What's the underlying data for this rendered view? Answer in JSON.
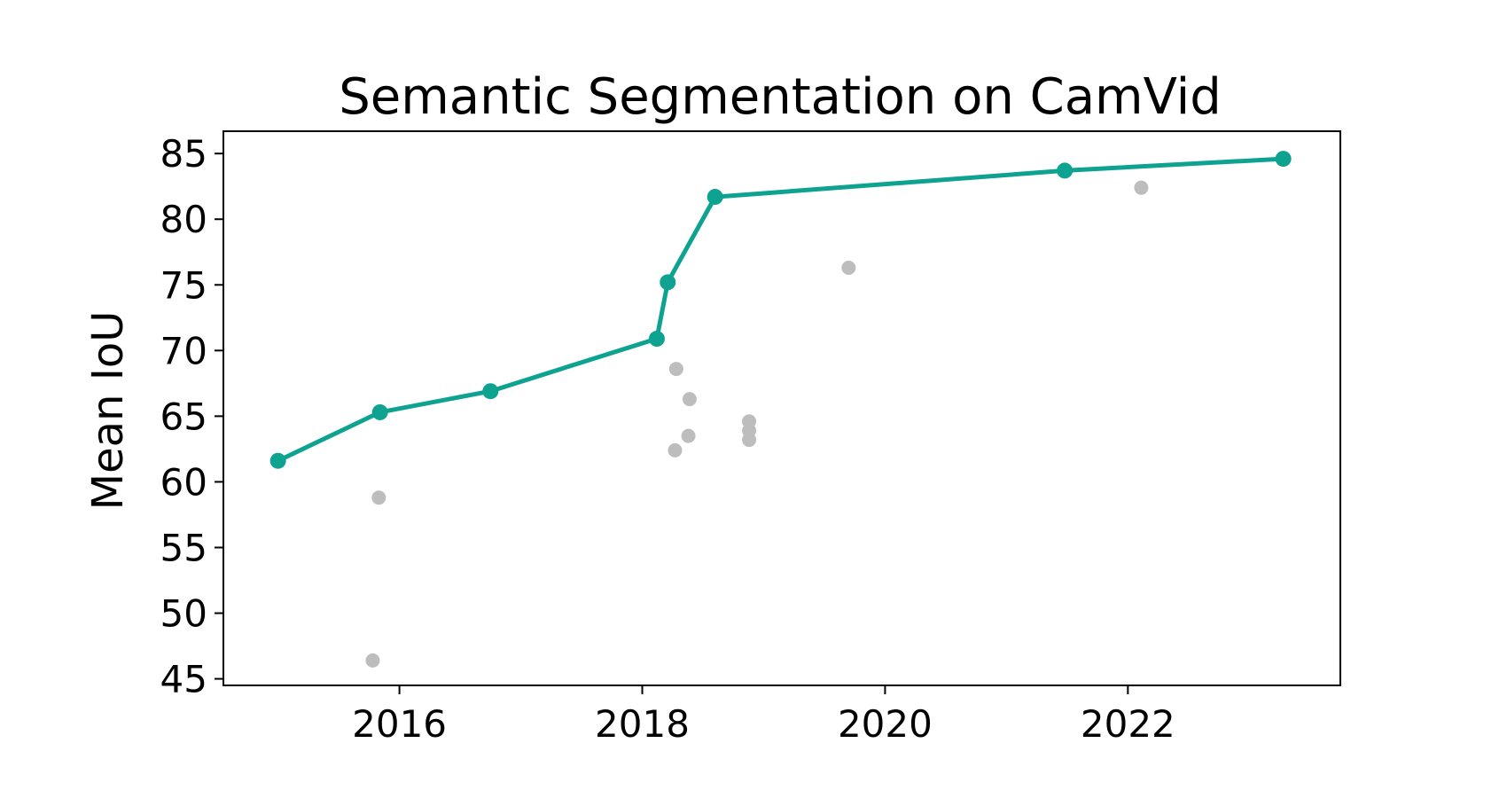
{
  "chart_data": {
    "type": "scatter",
    "title": "Semantic Segmentation on CamVid",
    "xlabel": "",
    "ylabel": "Mean IoU",
    "xlim": [
      2014.55,
      2023.75
    ],
    "ylim": [
      44.5,
      86.7
    ],
    "x_ticks": [
      2016,
      2018,
      2020,
      2022
    ],
    "y_ticks": [
      45,
      50,
      55,
      60,
      65,
      70,
      75,
      80,
      85
    ],
    "grid": false,
    "legend": "none",
    "colors": {
      "sota_line": "#0ea390",
      "other_points": "#bdbdbd",
      "axes": "#000000"
    },
    "series": [
      {
        "kind": "line",
        "points": [
          {
            "x": 2015.0,
            "y": 61.6
          },
          {
            "x": 2015.84,
            "y": 65.3
          },
          {
            "x": 2016.75,
            "y": 66.9
          },
          {
            "x": 2018.12,
            "y": 70.9
          },
          {
            "x": 2018.21,
            "y": 75.2
          },
          {
            "x": 2018.6,
            "y": 81.7
          },
          {
            "x": 2021.48,
            "y": 83.7
          },
          {
            "x": 2023.28,
            "y": 84.6
          }
        ]
      },
      {
        "kind": "scatter",
        "points": [
          {
            "x": 2015.78,
            "y": 46.4
          },
          {
            "x": 2015.83,
            "y": 58.8
          },
          {
            "x": 2018.27,
            "y": 62.4
          },
          {
            "x": 2018.28,
            "y": 68.6
          },
          {
            "x": 2018.38,
            "y": 63.5
          },
          {
            "x": 2018.39,
            "y": 66.3
          },
          {
            "x": 2018.88,
            "y": 63.2
          },
          {
            "x": 2018.88,
            "y": 63.9
          },
          {
            "x": 2018.88,
            "y": 64.6
          },
          {
            "x": 2019.7,
            "y": 76.3
          },
          {
            "x": 2022.11,
            "y": 82.4
          }
        ]
      }
    ]
  }
}
